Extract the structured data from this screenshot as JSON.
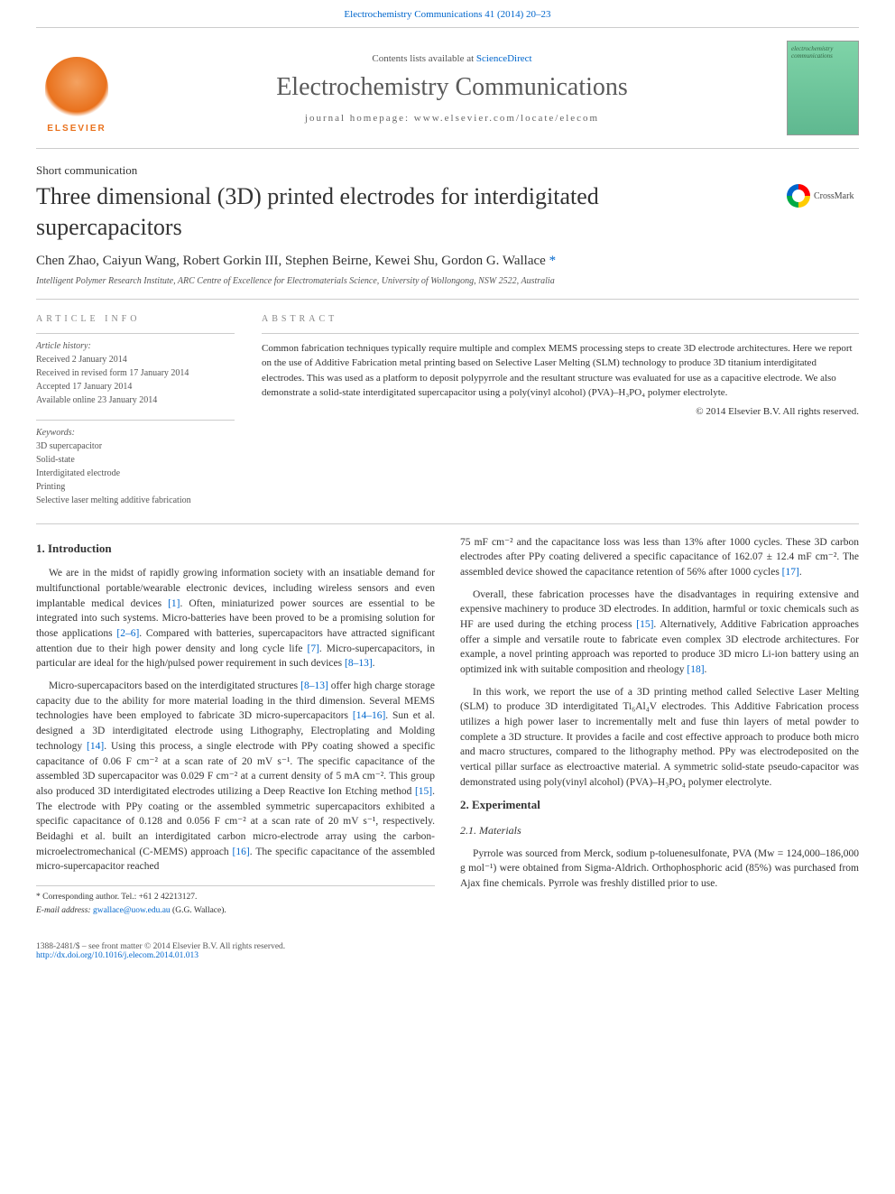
{
  "top_link": {
    "journal": "Electrochemistry Communications 41 (2014) 20–23",
    "url_label": "Electrochemistry Communications 41 (2014) 20–23"
  },
  "header": {
    "contents_prefix": "Contents lists available at ",
    "contents_link": "ScienceDirect",
    "journal_title": "Electrochemistry Communications",
    "homepage_label": "journal homepage: www.elsevier.com/locate/elecom",
    "publisher": "ELSEVIER",
    "cover_text": "electrochemistry communications"
  },
  "section_label": "Short communication",
  "paper_title": "Three dimensional (3D) printed electrodes for interdigitated supercapacitors",
  "crossmark_label": "CrossMark",
  "authors_line": "Chen Zhao, Caiyun Wang, Robert Gorkin III, Stephen Beirne, Kewei Shu, Gordon G. Wallace ",
  "corr_mark": "*",
  "affiliation": "Intelligent Polymer Research Institute, ARC Centre of Excellence for Electromaterials Science, University of Wollongong, NSW 2522, Australia",
  "article_info": {
    "heading": "ARTICLE INFO",
    "history_head": "Article history:",
    "history": [
      "Received 2 January 2014",
      "Received in revised form 17 January 2014",
      "Accepted 17 January 2014",
      "Available online 23 January 2014"
    ],
    "keywords_head": "Keywords:",
    "keywords": [
      "3D supercapacitor",
      "Solid-state",
      "Interdigitated electrode",
      "Printing",
      "Selective laser melting additive fabrication"
    ]
  },
  "abstract": {
    "heading": "ABSTRACT",
    "text": "Common fabrication techniques typically require multiple and complex MEMS processing steps to create 3D electrode architectures. Here we report on the use of Additive Fabrication metal printing based on Selective Laser Melting (SLM) technology to produce 3D titanium interdigitated electrodes. This was used as a platform to deposit polypyrrole and the resultant structure was evaluated for use as a capacitive electrode. We also demonstrate a solid-state interdigitated supercapacitor using a poly(vinyl alcohol) (PVA)–H₃PO₄ polymer electrolyte.",
    "copyright": "© 2014 Elsevier B.V. All rights reserved."
  },
  "body": {
    "intro_head": "1. Introduction",
    "p1": "We are in the midst of rapidly growing information society with an insatiable demand for multifunctional portable/wearable electronic devices, including wireless sensors and even implantable medical devices [1]. Often, miniaturized power sources are essential to be integrated into such systems. Micro-batteries have been proved to be a promising solution for those applications [2–6]. Compared with batteries, supercapacitors have attracted significant attention due to their high power density and long cycle life [7]. Micro-supercapacitors, in particular are ideal for the high/pulsed power requirement in such devices [8–13].",
    "p2": "Micro-supercapacitors based on the interdigitated structures [8–13] offer high charge storage capacity due to the ability for more material loading in the third dimension. Several MEMS technologies have been employed to fabricate 3D micro-supercapacitors [14–16]. Sun et al. designed a 3D interdigitated electrode using Lithography, Electroplating and Molding technology [14]. Using this process, a single electrode with PPy coating showed a specific capacitance of 0.06 F cm⁻² at a scan rate of 20 mV s⁻¹. The specific capacitance of the assembled 3D supercapacitor was 0.029 F cm⁻² at a current density of 5 mA cm⁻². This group also produced 3D interdigitated electrodes utilizing a Deep Reactive Ion Etching method [15]. The electrode with PPy coating or the assembled symmetric supercapacitors exhibited a specific capacitance of 0.128 and 0.056 F cm⁻² at a scan rate of 20 mV s⁻¹, respectively. Beidaghi et al. built an interdigitated carbon micro-electrode array using the carbon-microelectromechanical (C-MEMS) approach [16]. The specific capacitance of the assembled micro-supercapacitor reached",
    "p3": "75 mF cm⁻² and the capacitance loss was less than 13% after 1000 cycles. These 3D carbon electrodes after PPy coating delivered a specific capacitance of 162.07 ± 12.4 mF cm⁻². The assembled device showed the capacitance retention of 56% after 1000 cycles [17].",
    "p4": "Overall, these fabrication processes have the disadvantages in requiring extensive and expensive machinery to produce 3D electrodes. In addition, harmful or toxic chemicals such as HF are used during the etching process [15]. Alternatively, Additive Fabrication approaches offer a simple and versatile route to fabricate even complex 3D electrode architectures. For example, a novel printing approach was reported to produce 3D micro Li-ion battery using an optimized ink with suitable composition and rheology [18].",
    "p5": "In this work, we report the use of a 3D printing method called Selective Laser Melting (SLM) to produce 3D interdigitated Ti₆Al₄V electrodes. This Additive Fabrication process utilizes a high power laser to incrementally melt and fuse thin layers of metal powder to complete a 3D structure. It provides a facile and cost effective approach to produce both micro and macro structures, compared to the lithography method. PPy was electrodeposited on the vertical pillar surface as electroactive material. A symmetric solid-state pseudo-capacitor was demonstrated using poly(vinyl alcohol) (PVA)–H₃PO₄ polymer electrolyte.",
    "exp_head": "2. Experimental",
    "mat_head": "2.1. Materials",
    "p6": "Pyrrole was sourced from Merck, sodium p-toluenesulfonate, PVA (Mw = 124,000–186,000 g mol⁻¹) were obtained from Sigma-Aldrich. Orthophosphoric acid (85%) was purchased from Ajax fine chemicals. Pyrrole was freshly distilled prior to use."
  },
  "footnote": {
    "corr": "* Corresponding author. Tel.: +61 2 42213127.",
    "email_label": "E-mail address: ",
    "email": "gwallace@uow.edu.au",
    "email_suffix": " (G.G. Wallace)."
  },
  "footer": {
    "left1": "1388-2481/$ – see front matter © 2014 Elsevier B.V. All rights reserved.",
    "doi": "http://dx.doi.org/10.1016/j.elecom.2014.01.013"
  },
  "colors": {
    "link": "#0066cc",
    "text": "#333333",
    "muted": "#888888",
    "rule": "#cccccc",
    "elsevier": "#e9711c",
    "cover_bg_top": "#7fd4a8",
    "cover_bg_bot": "#5fb890"
  },
  "typography": {
    "body_pt": 11.5,
    "title_pt": 26,
    "journal_pt": 28,
    "info_pt": 10
  },
  "citations_in_text": [
    "[1]",
    "[2–6]",
    "[7]",
    "[8–13]",
    "[14–16]",
    "[14]",
    "[15]",
    "[16]",
    "[17]",
    "[18]"
  ]
}
